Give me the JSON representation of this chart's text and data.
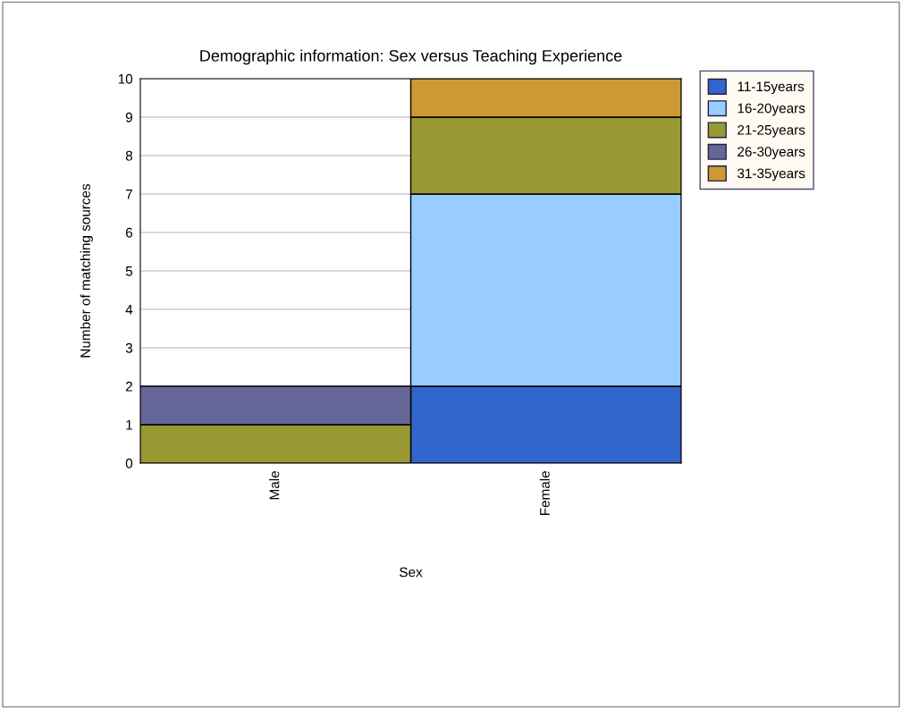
{
  "chart_data": {
    "type": "bar",
    "title": "Demographic information: Sex versus Teaching Experience",
    "xlabel": "Sex",
    "ylabel": "Number of matching sources",
    "categories": [
      "Male",
      "Female"
    ],
    "series": [
      {
        "name": "11-15years",
        "color": "#3366cc",
        "values": [
          0,
          2
        ]
      },
      {
        "name": "16-20years",
        "color": "#99ccff",
        "values": [
          0,
          5
        ]
      },
      {
        "name": "21-25years",
        "color": "#999933",
        "values": [
          1,
          2
        ]
      },
      {
        "name": "26-30years",
        "color": "#666699",
        "values": [
          1,
          0
        ]
      },
      {
        "name": "31-35years",
        "color": "#cc9933",
        "values": [
          0,
          1
        ]
      }
    ],
    "stacked": true,
    "ylim": [
      0,
      10
    ],
    "yticks": [
      0,
      1,
      2,
      3,
      4,
      5,
      6,
      7,
      8,
      9,
      10
    ],
    "grid": "y",
    "legend": "right"
  }
}
